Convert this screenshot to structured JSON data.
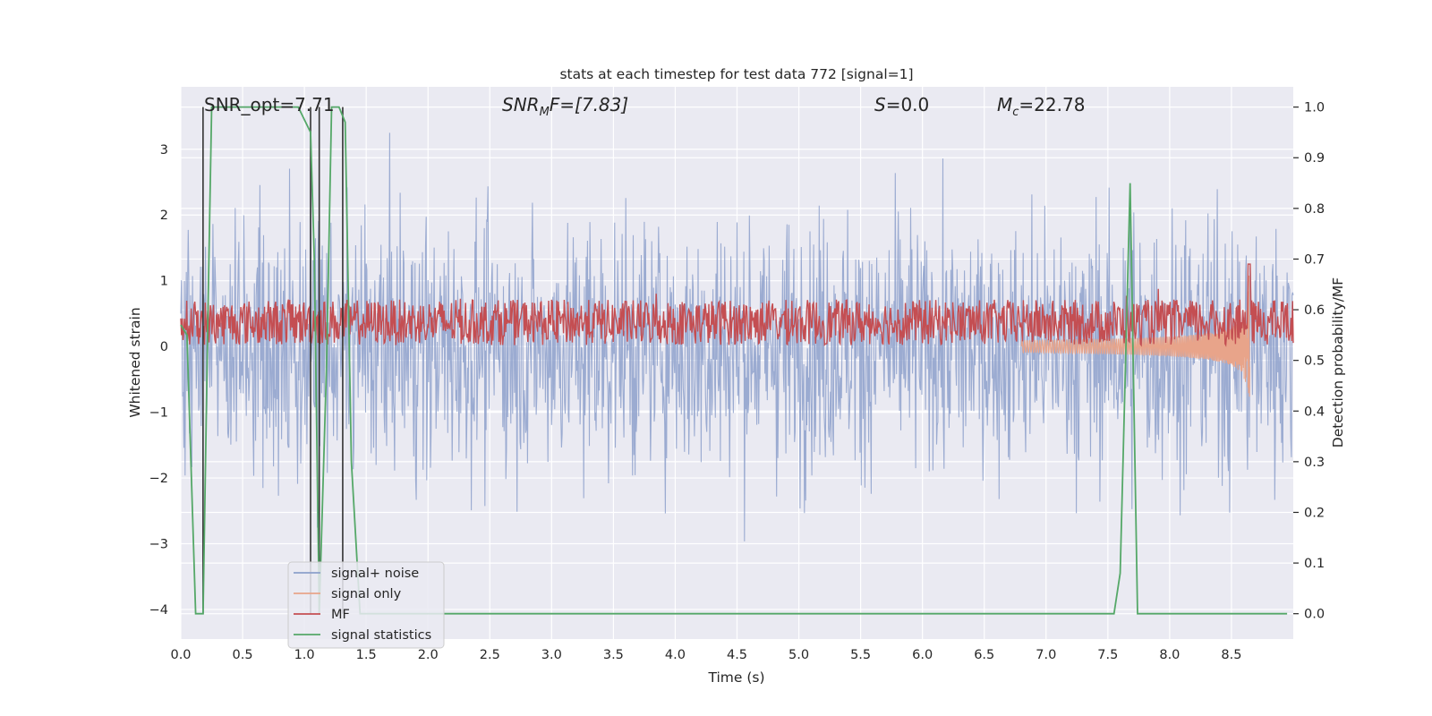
{
  "chart_data": {
    "type": "line",
    "title": "stats at each timestep for test data 772 [signal=1]",
    "xlabel": "Time (s)",
    "ylabel": "Whitened strain",
    "ylabel_right": "Detection probability/MF",
    "xlim": [
      0.0,
      9.0
    ],
    "ylim": [
      -4.45,
      3.95
    ],
    "ylim_right": [
      -0.05,
      1.04
    ],
    "grid": true,
    "background": "#eaeaf2",
    "x_ticks": [
      "0.0",
      "0.5",
      "1.0",
      "1.5",
      "2.0",
      "2.5",
      "3.0",
      "3.5",
      "4.0",
      "4.5",
      "5.0",
      "5.5",
      "6.0",
      "6.5",
      "7.0",
      "7.5",
      "8.0",
      "8.5"
    ],
    "y_ticks": [
      "3",
      "2",
      "1",
      "0",
      "−1",
      "−2",
      "−3",
      "−4"
    ],
    "y_ticks_right": [
      "1.0",
      "0.9",
      "0.8",
      "0.7",
      "0.6",
      "0.5",
      "0.4",
      "0.3",
      "0.2",
      "0.1",
      "0.0"
    ],
    "annotations": {
      "snr_opt": "SNR_opt=7.71",
      "snr_mf_base": "SNR",
      "snr_mf_sub": "M",
      "snr_mf_rest": "F=[7.83]",
      "s_var": "S",
      "s_rest": "=0.0",
      "mc_base": "M",
      "mc_sub": "c",
      "mc_rest": "=22.78"
    },
    "legend_position": "lower-left",
    "series": [
      {
        "name": "signal+ noise",
        "color": "#8da0cb",
        "noise_envelope": {
          "typical_min": -1.8,
          "typical_max": 1.6,
          "extreme_min": -4.0,
          "extreme_max": 3.5
        }
      },
      {
        "name": "signal only",
        "color": "#e8a48a",
        "chirp": {
          "start_time": 6.8,
          "merger_time": 8.65,
          "peak_amplitude": 1.5
        }
      },
      {
        "name": "MF",
        "color": "#c44e52",
        "axis": "right",
        "baseline_range": [
          0.53,
          0.62
        ]
      },
      {
        "name": "signal statistics",
        "color": "#55a868",
        "axis": "right",
        "x": [
          0.0,
          0.05,
          0.12,
          0.18,
          0.22,
          0.25,
          0.95,
          1.05,
          1.08,
          1.12,
          1.18,
          1.22,
          1.28,
          1.33,
          1.38,
          1.45,
          7.55,
          7.6,
          7.68,
          7.74,
          8.95
        ],
        "y": [
          0.57,
          0.55,
          0.0,
          0.0,
          0.6,
          1.0,
          1.0,
          0.95,
          0.7,
          0.0,
          0.5,
          1.0,
          1.0,
          0.97,
          0.3,
          0.0,
          0.0,
          0.08,
          0.85,
          0.0,
          0.0
        ]
      }
    ],
    "vertical_lines": [
      {
        "x": 0.18,
        "color": "#333333",
        "from": 0.0,
        "to": 1.0
      },
      {
        "x": 1.05,
        "color": "#333333",
        "from": 0.0,
        "to": 1.0
      },
      {
        "x": 1.12,
        "color": "#333333",
        "from": 0.0,
        "to": 1.0
      },
      {
        "x": 1.31,
        "color": "#333333",
        "from": 0.0,
        "to": 1.0
      }
    ]
  }
}
